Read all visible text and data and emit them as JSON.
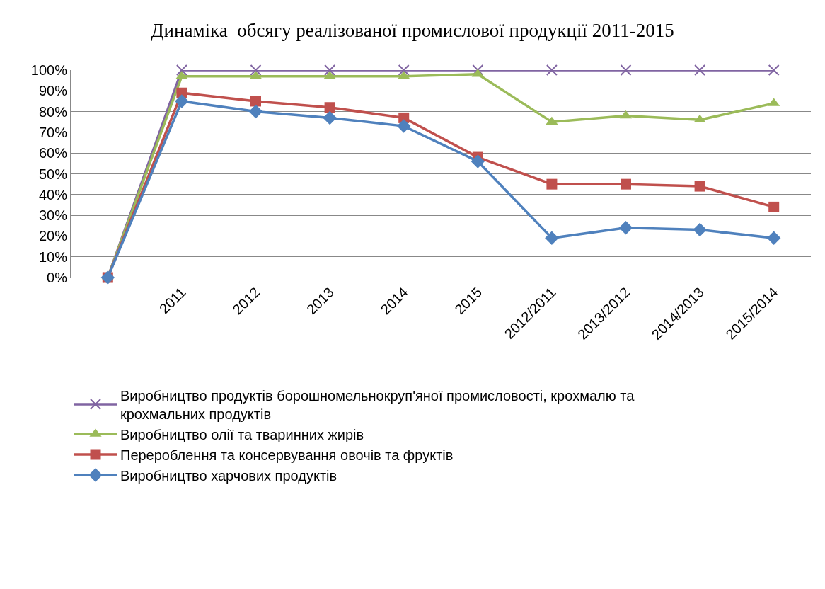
{
  "chart_data": {
    "type": "line",
    "title": "Динаміка  обсягу реалізованої промислової продукції 2011-2015",
    "categories": [
      null,
      "2011",
      "2012",
      "2013",
      "2014",
      "2015",
      "2012/2011",
      "2013/2012",
      "2014/2013",
      "2015/2014"
    ],
    "series": [
      {
        "name": "Виробництво продуктів борошномельнокруп'яної промисловості, крохмалю та крохмальних продуктів",
        "color": "#8064a2",
        "marker": "cross",
        "values": [
          0,
          100,
          100,
          100,
          100,
          100,
          100,
          100,
          100,
          100
        ]
      },
      {
        "name": "Виробництво олії та тваринних жирів",
        "color": "#9bbb59",
        "marker": "triangle",
        "values": [
          0,
          97,
          97,
          97,
          97,
          98,
          75,
          78,
          76,
          84
        ]
      },
      {
        "name": "Перероблення та консервування овочів та фруктів",
        "color": "#c0504d",
        "marker": "square",
        "values": [
          0,
          89,
          85,
          82,
          77,
          58,
          45,
          45,
          44,
          34
        ]
      },
      {
        "name": "Виробництво харчових продуктів",
        "color": "#4f81bd",
        "marker": "diamond",
        "values": [
          0,
          85,
          80,
          77,
          73,
          56,
          19,
          24,
          23,
          19
        ]
      }
    ],
    "ylim": [
      0,
      100
    ],
    "yticks": [
      {
        "value": 0,
        "label": "0%"
      },
      {
        "value": 10,
        "label": "10%"
      },
      {
        "value": 20,
        "label": "20%"
      },
      {
        "value": 30,
        "label": "30%"
      },
      {
        "value": 40,
        "label": "40%"
      },
      {
        "value": 50,
        "label": "50%"
      },
      {
        "value": 60,
        "label": "60%"
      },
      {
        "value": 70,
        "label": "70%"
      },
      {
        "value": 80,
        "label": "80%"
      },
      {
        "value": 90,
        "label": "90%"
      },
      {
        "value": 100,
        "label": "100%"
      }
    ],
    "grid": "y",
    "legend": "bottom",
    "line_style": "solid"
  }
}
